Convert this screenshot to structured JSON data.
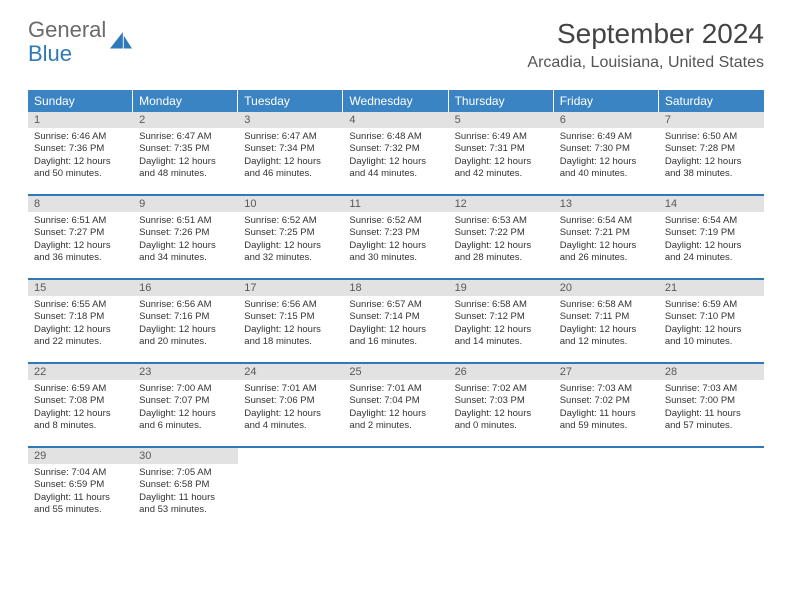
{
  "logo": {
    "text_general": "General",
    "text_blue": "Blue"
  },
  "title": "September 2024",
  "location": "Arcadia, Louisiana, United States",
  "colors": {
    "header_bg": "#3b84c4",
    "header_text": "#ffffff",
    "daynum_bg": "#e2e2e2",
    "daynum_text": "#595959",
    "border": "#2f79b9",
    "logo_gray": "#6a6a6a",
    "logo_blue": "#2f79b9"
  },
  "weekdays": [
    "Sunday",
    "Monday",
    "Tuesday",
    "Wednesday",
    "Thursday",
    "Friday",
    "Saturday"
  ],
  "weeks": [
    [
      {
        "n": "1",
        "sr": "Sunrise: 6:46 AM",
        "ss": "Sunset: 7:36 PM",
        "d1": "Daylight: 12 hours",
        "d2": "and 50 minutes."
      },
      {
        "n": "2",
        "sr": "Sunrise: 6:47 AM",
        "ss": "Sunset: 7:35 PM",
        "d1": "Daylight: 12 hours",
        "d2": "and 48 minutes."
      },
      {
        "n": "3",
        "sr": "Sunrise: 6:47 AM",
        "ss": "Sunset: 7:34 PM",
        "d1": "Daylight: 12 hours",
        "d2": "and 46 minutes."
      },
      {
        "n": "4",
        "sr": "Sunrise: 6:48 AM",
        "ss": "Sunset: 7:32 PM",
        "d1": "Daylight: 12 hours",
        "d2": "and 44 minutes."
      },
      {
        "n": "5",
        "sr": "Sunrise: 6:49 AM",
        "ss": "Sunset: 7:31 PM",
        "d1": "Daylight: 12 hours",
        "d2": "and 42 minutes."
      },
      {
        "n": "6",
        "sr": "Sunrise: 6:49 AM",
        "ss": "Sunset: 7:30 PM",
        "d1": "Daylight: 12 hours",
        "d2": "and 40 minutes."
      },
      {
        "n": "7",
        "sr": "Sunrise: 6:50 AM",
        "ss": "Sunset: 7:28 PM",
        "d1": "Daylight: 12 hours",
        "d2": "and 38 minutes."
      }
    ],
    [
      {
        "n": "8",
        "sr": "Sunrise: 6:51 AM",
        "ss": "Sunset: 7:27 PM",
        "d1": "Daylight: 12 hours",
        "d2": "and 36 minutes."
      },
      {
        "n": "9",
        "sr": "Sunrise: 6:51 AM",
        "ss": "Sunset: 7:26 PM",
        "d1": "Daylight: 12 hours",
        "d2": "and 34 minutes."
      },
      {
        "n": "10",
        "sr": "Sunrise: 6:52 AM",
        "ss": "Sunset: 7:25 PM",
        "d1": "Daylight: 12 hours",
        "d2": "and 32 minutes."
      },
      {
        "n": "11",
        "sr": "Sunrise: 6:52 AM",
        "ss": "Sunset: 7:23 PM",
        "d1": "Daylight: 12 hours",
        "d2": "and 30 minutes."
      },
      {
        "n": "12",
        "sr": "Sunrise: 6:53 AM",
        "ss": "Sunset: 7:22 PM",
        "d1": "Daylight: 12 hours",
        "d2": "and 28 minutes."
      },
      {
        "n": "13",
        "sr": "Sunrise: 6:54 AM",
        "ss": "Sunset: 7:21 PM",
        "d1": "Daylight: 12 hours",
        "d2": "and 26 minutes."
      },
      {
        "n": "14",
        "sr": "Sunrise: 6:54 AM",
        "ss": "Sunset: 7:19 PM",
        "d1": "Daylight: 12 hours",
        "d2": "and 24 minutes."
      }
    ],
    [
      {
        "n": "15",
        "sr": "Sunrise: 6:55 AM",
        "ss": "Sunset: 7:18 PM",
        "d1": "Daylight: 12 hours",
        "d2": "and 22 minutes."
      },
      {
        "n": "16",
        "sr": "Sunrise: 6:56 AM",
        "ss": "Sunset: 7:16 PM",
        "d1": "Daylight: 12 hours",
        "d2": "and 20 minutes."
      },
      {
        "n": "17",
        "sr": "Sunrise: 6:56 AM",
        "ss": "Sunset: 7:15 PM",
        "d1": "Daylight: 12 hours",
        "d2": "and 18 minutes."
      },
      {
        "n": "18",
        "sr": "Sunrise: 6:57 AM",
        "ss": "Sunset: 7:14 PM",
        "d1": "Daylight: 12 hours",
        "d2": "and 16 minutes."
      },
      {
        "n": "19",
        "sr": "Sunrise: 6:58 AM",
        "ss": "Sunset: 7:12 PM",
        "d1": "Daylight: 12 hours",
        "d2": "and 14 minutes."
      },
      {
        "n": "20",
        "sr": "Sunrise: 6:58 AM",
        "ss": "Sunset: 7:11 PM",
        "d1": "Daylight: 12 hours",
        "d2": "and 12 minutes."
      },
      {
        "n": "21",
        "sr": "Sunrise: 6:59 AM",
        "ss": "Sunset: 7:10 PM",
        "d1": "Daylight: 12 hours",
        "d2": "and 10 minutes."
      }
    ],
    [
      {
        "n": "22",
        "sr": "Sunrise: 6:59 AM",
        "ss": "Sunset: 7:08 PM",
        "d1": "Daylight: 12 hours",
        "d2": "and 8 minutes."
      },
      {
        "n": "23",
        "sr": "Sunrise: 7:00 AM",
        "ss": "Sunset: 7:07 PM",
        "d1": "Daylight: 12 hours",
        "d2": "and 6 minutes."
      },
      {
        "n": "24",
        "sr": "Sunrise: 7:01 AM",
        "ss": "Sunset: 7:06 PM",
        "d1": "Daylight: 12 hours",
        "d2": "and 4 minutes."
      },
      {
        "n": "25",
        "sr": "Sunrise: 7:01 AM",
        "ss": "Sunset: 7:04 PM",
        "d1": "Daylight: 12 hours",
        "d2": "and 2 minutes."
      },
      {
        "n": "26",
        "sr": "Sunrise: 7:02 AM",
        "ss": "Sunset: 7:03 PM",
        "d1": "Daylight: 12 hours",
        "d2": "and 0 minutes."
      },
      {
        "n": "27",
        "sr": "Sunrise: 7:03 AM",
        "ss": "Sunset: 7:02 PM",
        "d1": "Daylight: 11 hours",
        "d2": "and 59 minutes."
      },
      {
        "n": "28",
        "sr": "Sunrise: 7:03 AM",
        "ss": "Sunset: 7:00 PM",
        "d1": "Daylight: 11 hours",
        "d2": "and 57 minutes."
      }
    ],
    [
      {
        "n": "29",
        "sr": "Sunrise: 7:04 AM",
        "ss": "Sunset: 6:59 PM",
        "d1": "Daylight: 11 hours",
        "d2": "and 55 minutes."
      },
      {
        "n": "30",
        "sr": "Sunrise: 7:05 AM",
        "ss": "Sunset: 6:58 PM",
        "d1": "Daylight: 11 hours",
        "d2": "and 53 minutes."
      },
      {
        "empty": true
      },
      {
        "empty": true
      },
      {
        "empty": true
      },
      {
        "empty": true
      },
      {
        "empty": true
      }
    ]
  ]
}
